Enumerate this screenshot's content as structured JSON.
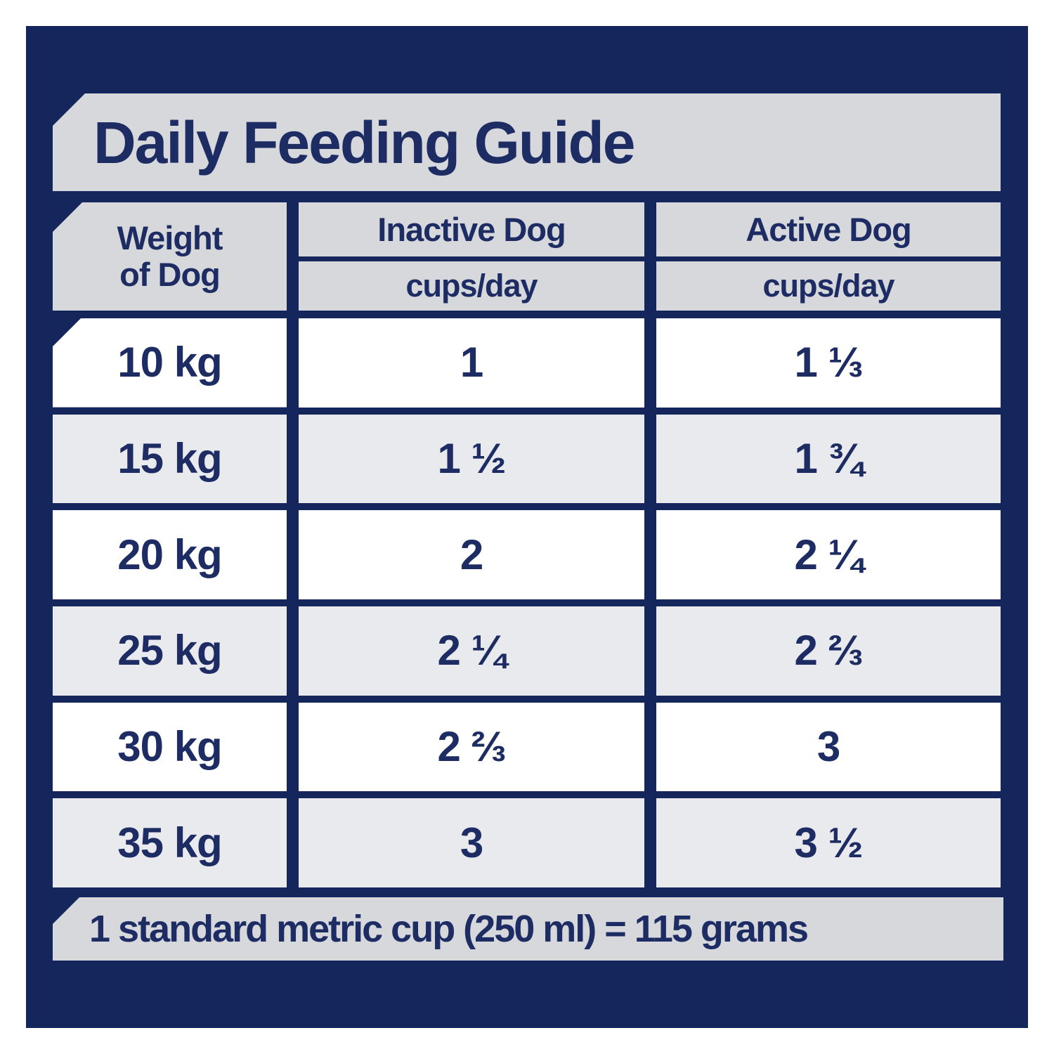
{
  "title": "Daily Feeding Guide",
  "colors": {
    "navy_background": "#14265b",
    "band_gray": "#d7d8dc",
    "row_gray": "#e9eaee",
    "row_white": "#ffffff",
    "text_navy": "#1e2c64"
  },
  "table": {
    "weight_header_line1": "Weight",
    "weight_header_line2": "of Dog",
    "columns": [
      {
        "label": "Inactive Dog",
        "sublabel": "cups/day"
      },
      {
        "label": "Active Dog",
        "sublabel": "cups/day"
      }
    ],
    "rows": [
      {
        "weight": "10 kg",
        "inactive": "1",
        "active": "1 ⅓"
      },
      {
        "weight": "15 kg",
        "inactive": "1 ½",
        "active": "1 ¾"
      },
      {
        "weight": "20 kg",
        "inactive": "2",
        "active": "2 ¼"
      },
      {
        "weight": "25 kg",
        "inactive": "2 ¼",
        "active": "2 ⅔"
      },
      {
        "weight": "30 kg",
        "inactive": "2 ⅔",
        "active": "3"
      },
      {
        "weight": "35 kg",
        "inactive": "3",
        "active": "3 ½"
      }
    ]
  },
  "footnote": "1 standard metric cup (250 ml) = 115 grams",
  "chart_data": {
    "type": "table",
    "title": "Daily Feeding Guide",
    "columns": [
      "Weight of Dog",
      "Inactive Dog (cups/day)",
      "Active Dog (cups/day)"
    ],
    "rows": [
      [
        "10 kg",
        "1",
        "1 1/3"
      ],
      [
        "15 kg",
        "1 1/2",
        "1 3/4"
      ],
      [
        "20 kg",
        "2",
        "2 1/4"
      ],
      [
        "25 kg",
        "2 1/4",
        "2 2/3"
      ],
      [
        "30 kg",
        "2 2/3",
        "3"
      ],
      [
        "35 kg",
        "3",
        "3 1/2"
      ]
    ],
    "numeric": {
      "weights_kg": [
        10,
        15,
        20,
        25,
        30,
        35
      ],
      "inactive_cups_per_day": [
        1,
        1.5,
        2,
        2.25,
        2.667,
        3
      ],
      "active_cups_per_day": [
        1.333,
        1.75,
        2.25,
        2.667,
        3,
        3.5
      ]
    },
    "footnote": "1 standard metric cup (250 ml) = 115 grams"
  }
}
